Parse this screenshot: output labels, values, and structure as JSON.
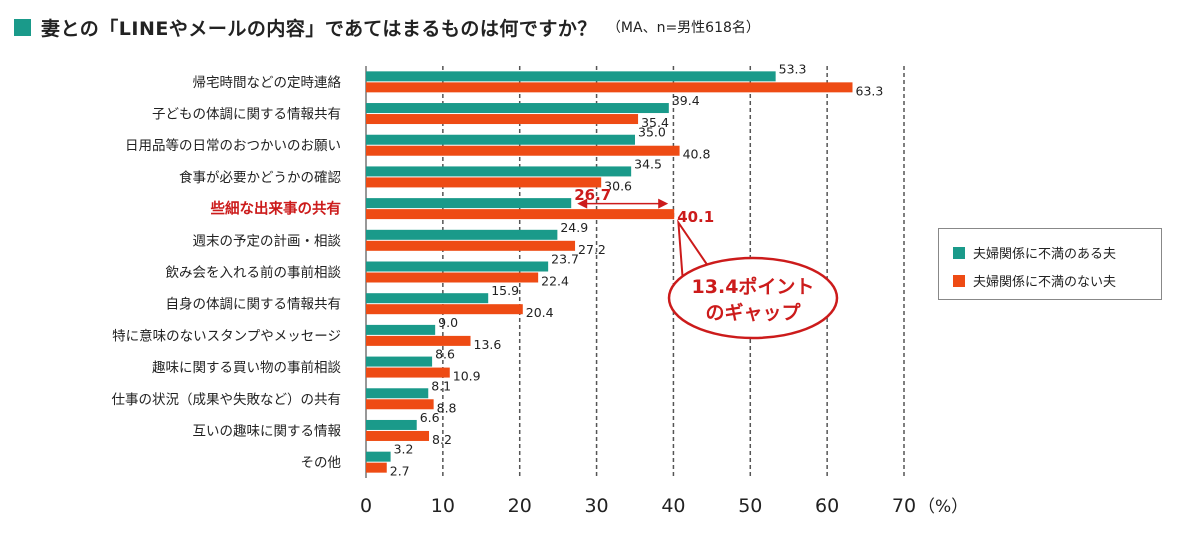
{
  "title": {
    "main": "妻との「LINEやメールの内容」であてはまるものは何ですか？",
    "note": "（MA、n=男性618名）"
  },
  "colors": {
    "series1": "#1a9a8a",
    "series2": "#ee4b14",
    "accent": "#cc1b1b",
    "title_square": "#1a9a8a"
  },
  "callout": {
    "line1": "13.4ポイント",
    "line2": "のギャップ"
  },
  "chart_data": {
    "type": "bar",
    "orientation": "horizontal",
    "categories": [
      "帰宅時間などの定時連絡",
      "子どもの体調に関する情報共有",
      "日用品等の日常のおつかいのお願い",
      "食事が必要かどうかの確認",
      "些細な出来事の共有",
      "週末の予定の計画・相談",
      "飲み会を入れる前の事前相談",
      "自身の体調に関する情報共有",
      "特に意味のないスタンプやメッセージ",
      "趣味に関する買い物の事前相談",
      "仕事の状況（成果や失敗など）の共有",
      "互いの趣味に関する情報",
      "その他"
    ],
    "highlight_index": 4,
    "series": [
      {
        "name": "夫婦関係に不満のある夫",
        "values": [
          53.3,
          39.4,
          35.0,
          34.5,
          26.7,
          24.9,
          23.7,
          15.9,
          9.0,
          8.6,
          8.1,
          6.6,
          3.2
        ]
      },
      {
        "name": "夫婦関係に不満のない夫",
        "values": [
          63.3,
          35.4,
          40.8,
          30.6,
          40.1,
          27.2,
          22.4,
          20.4,
          13.6,
          10.9,
          8.8,
          8.2,
          2.7
        ]
      }
    ],
    "value_labels": [
      [
        "53.3",
        "39.4",
        "35.0",
        "34.5",
        "26.7",
        "24.9",
        "23.7",
        "15.9",
        "9.0",
        "8.6",
        "8.1",
        "6.6",
        "3.2"
      ],
      [
        "63.3",
        "35.4",
        "40.8",
        "30.6",
        "40.1",
        "27.2",
        "22.4",
        "20.4",
        "13.6",
        "10.9",
        "8.8",
        "8.2",
        "2.7"
      ]
    ],
    "xticks": [
      "0",
      "10",
      "20",
      "30",
      "40",
      "50",
      "60",
      "70"
    ],
    "xunit": "（%）",
    "xlim": [
      0,
      70
    ],
    "grid": true
  }
}
